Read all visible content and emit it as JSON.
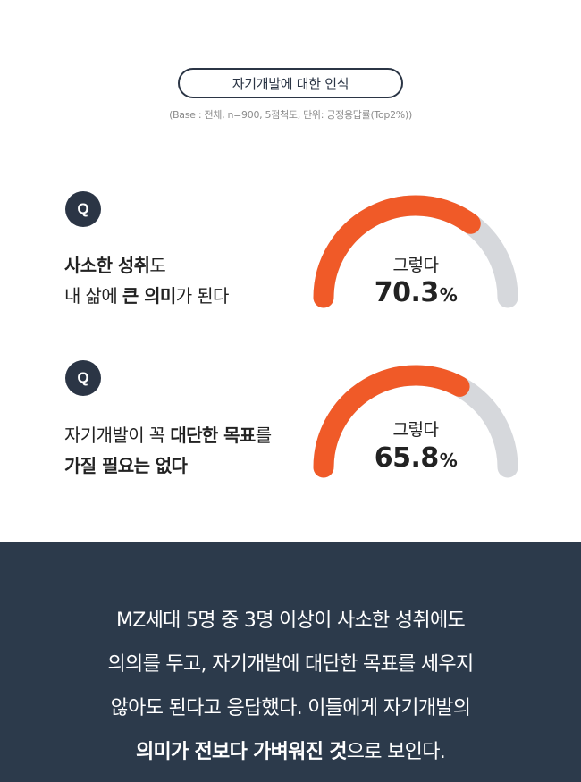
{
  "header": {
    "title": "자기개발에 대한 인식",
    "base_note": "(Base : 전체, n=900, 5점척도, 단위: 긍정응답률(Top2%))"
  },
  "questions": [
    {
      "badge": "Q",
      "line1": [
        {
          "text": "사소한 성취",
          "bold": true
        },
        {
          "text": "도",
          "bold": false
        }
      ],
      "line2": [
        {
          "text": "내 삶에 ",
          "bold": false
        },
        {
          "text": "큰 의미",
          "bold": true
        },
        {
          "text": "가 된다",
          "bold": false
        }
      ]
    },
    {
      "badge": "Q",
      "line1": [
        {
          "text": "자기개발이 꼭 ",
          "bold": false
        },
        {
          "text": "대단한 목표",
          "bold": true
        },
        {
          "text": "를",
          "bold": false
        }
      ],
      "line2": [
        {
          "text": "가질 필요는 없다",
          "bold": true
        }
      ]
    }
  ],
  "chart_data": [
    {
      "type": "gauge",
      "label": "그렇다",
      "value": 70.3,
      "value_text": "70.3",
      "unit": "%",
      "max": 100,
      "colors": {
        "fill": "#f05a28",
        "track": "#d6d8dc"
      }
    },
    {
      "type": "gauge",
      "label": "그렇다",
      "value": 65.8,
      "value_text": "65.8",
      "unit": "%",
      "max": 100,
      "colors": {
        "fill": "#f05a28",
        "track": "#d6d8dc"
      }
    }
  ],
  "summary": {
    "lines": [
      [
        {
          "text": "MZ세대 5명 중 3명 이상이 사소한 성취에도",
          "bold": false
        }
      ],
      [
        {
          "text": "의의를 두고, 자기개발에 대단한 목표를 세우지",
          "bold": false
        }
      ],
      [
        {
          "text": "않아도 된다고 응답했다. 이들에게 자기개발의",
          "bold": false
        }
      ],
      [
        {
          "text": "의미가 전보다 가벼워진 것",
          "bold": true
        },
        {
          "text": "으로 보인다.",
          "bold": false
        }
      ]
    ]
  },
  "colors": {
    "dark": "#2b3545",
    "summary_bg": "#2c3a4b",
    "accent": "#f05a28",
    "track": "#d6d8dc"
  }
}
